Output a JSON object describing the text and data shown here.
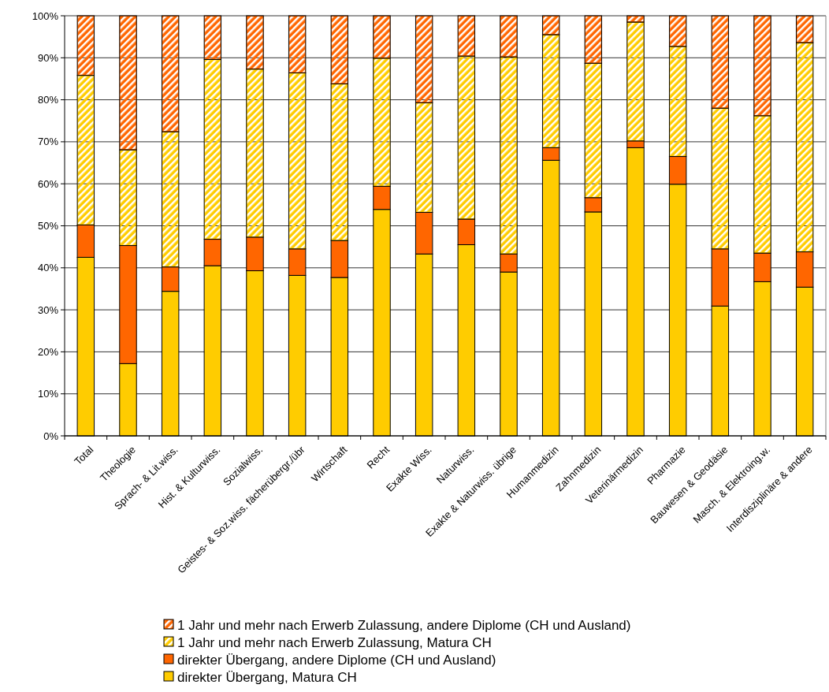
{
  "chart_data": {
    "type": "bar",
    "stacked": true,
    "categories": [
      "Total",
      "Theologie",
      "Sprach- & Lit.wiss.",
      "Hist. & Kulturwiss.",
      "Sozialwiss.",
      "Geistes- & Soz.wiss. fächerübergr./übr",
      "Wirtschaft",
      "Recht",
      "Exakte Wiss.",
      "Naturwiss.",
      "Exakte & Naturwiss. übrige",
      "Humanmedizin",
      "Zahnmedizin",
      "Veterinärmedizin",
      "Pharmazie",
      "Bauwesen & Geodäsie",
      "Masch. & Elektroing.w.",
      "Interdisziplinäre & andere"
    ],
    "series": [
      {
        "name": "direkter Übergang, Matura CH",
        "color": "#ffcc00",
        "values": [
          42.5,
          17.2,
          34.4,
          40.5,
          39.3,
          38.2,
          37.7,
          53.9,
          43.3,
          45.5,
          39.0,
          65.6,
          53.3,
          68.6,
          59.9,
          30.9,
          36.7,
          35.4
        ]
      },
      {
        "name": "direkter Übergang, andere Diplome (CH und Ausland)",
        "color": "#ff6600",
        "values": [
          7.7,
          28.1,
          5.8,
          6.3,
          8.0,
          6.3,
          8.8,
          5.5,
          9.9,
          6.1,
          4.3,
          3.0,
          3.4,
          1.6,
          6.6,
          13.6,
          6.8,
          8.4
        ]
      },
      {
        "name": "1 Jahr und mehr nach Erwerb Zulassung, Matura CH",
        "color": "#ffcc00",
        "values": [
          35.6,
          22.8,
          32.2,
          42.8,
          40.0,
          41.9,
          37.3,
          30.5,
          26.1,
          38.8,
          46.9,
          26.9,
          32.0,
          28.3,
          26.2,
          33.5,
          32.7,
          49.8
        ]
      },
      {
        "name": "1 Jahr und mehr nach Erwerb Zulassung, andere Diplome (CH und Ausland)",
        "color": "#ff6600",
        "values": [
          14.2,
          31.9,
          27.6,
          10.4,
          12.7,
          13.6,
          16.2,
          10.1,
          20.7,
          9.6,
          9.8,
          4.5,
          11.3,
          1.5,
          7.3,
          22.0,
          23.8,
          6.4
        ]
      }
    ],
    "ylim": [
      0,
      100
    ],
    "yticks": [
      {
        "value": 0,
        "label": "0%"
      },
      {
        "value": 10,
        "label": "10%"
      },
      {
        "value": 20,
        "label": "20%"
      },
      {
        "value": 30,
        "label": "30%"
      },
      {
        "value": 40,
        "label": "40%"
      },
      {
        "value": 50,
        "label": "50%"
      },
      {
        "value": 60,
        "label": "60%"
      },
      {
        "value": 70,
        "label": "70%"
      },
      {
        "value": 80,
        "label": "80%"
      },
      {
        "value": 90,
        "label": "90%"
      },
      {
        "value": 100,
        "label": "100%"
      }
    ],
    "grid": "y",
    "legend": "bottom"
  }
}
